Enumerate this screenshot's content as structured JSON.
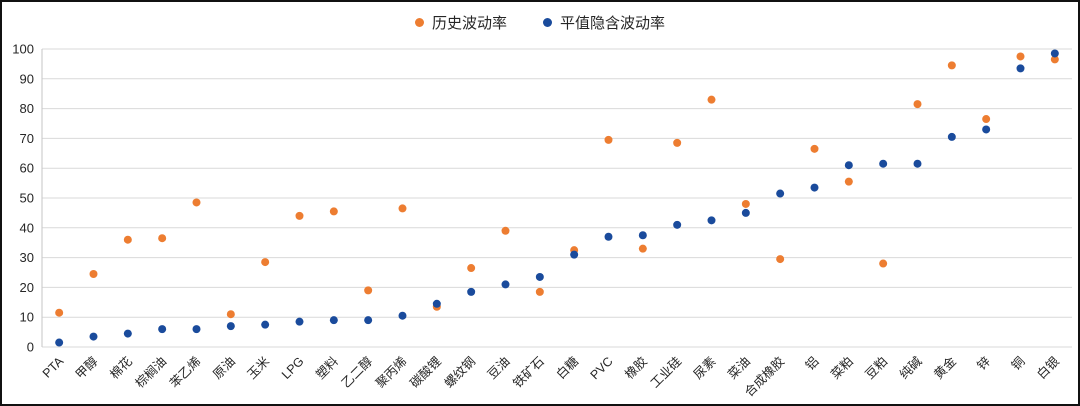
{
  "chart_data": {
    "type": "scatter",
    "title": "",
    "categories": [
      "PTA",
      "甲醇",
      "棉花",
      "棕榈油",
      "苯乙烯",
      "原油",
      "玉米",
      "LPG",
      "塑料",
      "乙二醇",
      "聚丙烯",
      "碳酸锂",
      "螺纹钢",
      "豆油",
      "铁矿石",
      "白糖",
      "PVC",
      "橡胶",
      "工业硅",
      "尿素",
      "菜油",
      "合成橡胶",
      "铝",
      "菜粕",
      "豆粕",
      "纯碱",
      "黄金",
      "锌",
      "铜",
      "白银"
    ],
    "series": [
      {
        "name": "历史波动率",
        "color": "#ED7D31",
        "values": [
          11.5,
          24.5,
          36,
          36.5,
          48.5,
          11,
          28.5,
          44,
          45.5,
          19,
          46.5,
          13.5,
          26.5,
          39,
          18.5,
          32.5,
          69.5,
          33,
          68.5,
          83,
          48,
          29.5,
          66.5,
          55.5,
          28,
          81.5,
          94.5,
          76.5,
          97.5,
          96.5
        ]
      },
      {
        "name": "平值隐含波动率",
        "color": "#1A4B9C",
        "values": [
          1.5,
          3.5,
          4.5,
          6,
          6,
          7,
          7.5,
          8.5,
          9,
          9,
          10.5,
          14.5,
          18.5,
          21,
          23.5,
          31,
          37,
          37.5,
          41,
          42.5,
          45,
          51.5,
          53.5,
          61,
          61.5,
          61.5,
          70.5,
          73,
          93.5,
          98.5
        ]
      }
    ],
    "xlabel": "",
    "ylabel": "",
    "ylim": [
      0,
      100
    ],
    "y_ticks": [
      0,
      10,
      20,
      30,
      40,
      50,
      60,
      70,
      80,
      90,
      100
    ],
    "grid": "horizontal",
    "legend_position": "top-center",
    "colors": {
      "gridline": "#d9d9d9",
      "axis": "#c6c6c6",
      "tick_text": "#262626",
      "frame_border": "#111111"
    }
  }
}
